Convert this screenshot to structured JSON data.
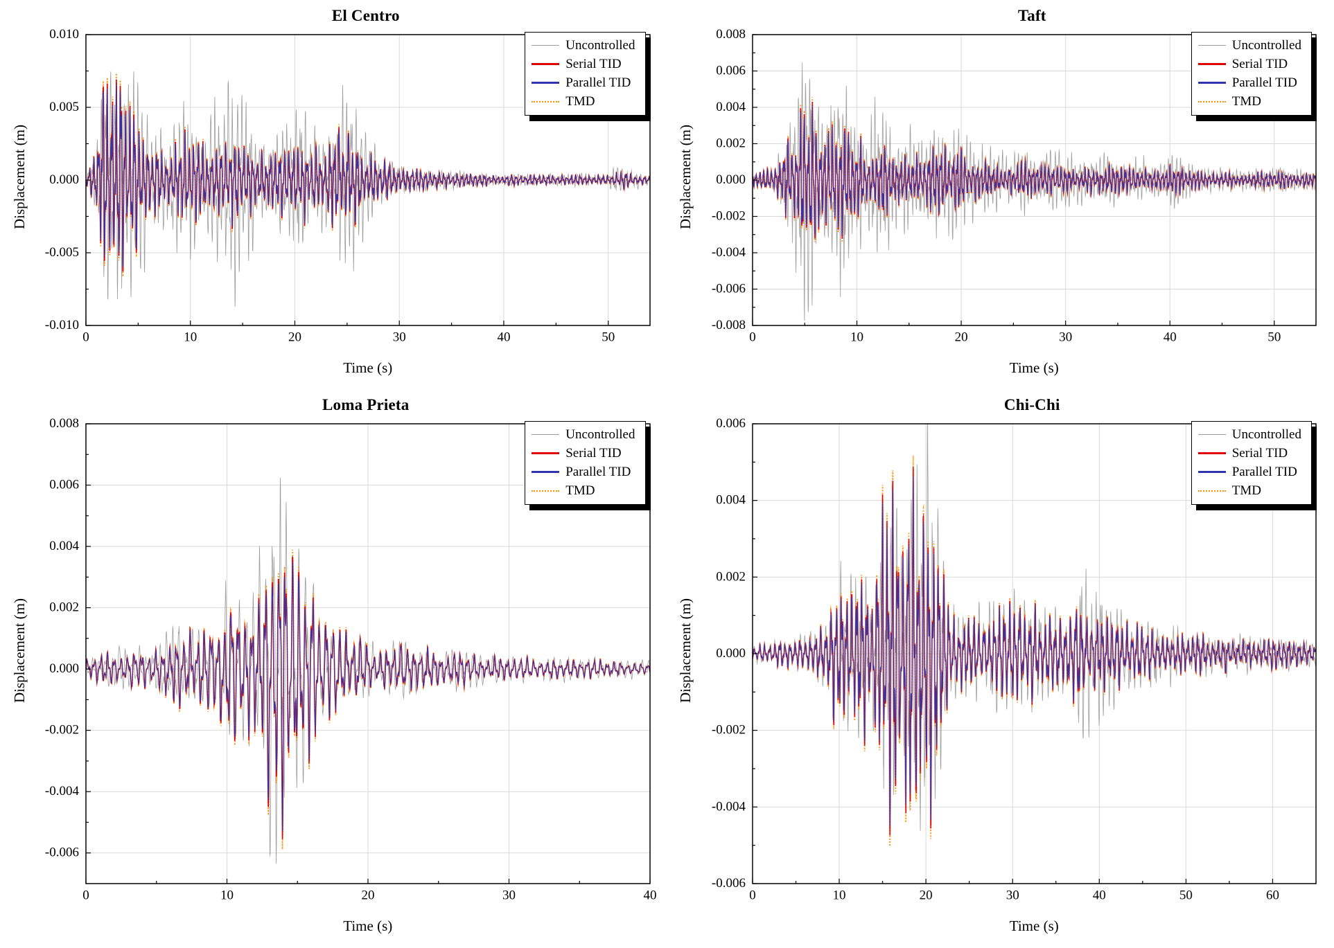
{
  "figure": {
    "background": "#ffffff"
  },
  "colors": {
    "uncontrolled": "#9c9c9c",
    "serial": "#e00000",
    "parallel": "#2f36ad",
    "tmd": "#ff8f00",
    "grid": "#d9d9d9",
    "frame": "#000000"
  },
  "chart_data": [
    {
      "type": "line",
      "title": "El Centro",
      "xlabel": "Time (s)",
      "ylabel": "Displacement (m)",
      "xlim": [
        0,
        54
      ],
      "ylim": [
        -0.01,
        0.01
      ],
      "xticks": [
        0,
        10,
        20,
        30,
        40,
        50
      ],
      "xtick_labels": [
        "0",
        "10",
        "20",
        "30",
        "40",
        "50"
      ],
      "yticks": [
        0.01,
        0.005,
        0.0,
        -0.005,
        -0.01
      ],
      "ytick_labels": [
        "0.010",
        "0.005",
        "0.000",
        "-0.005",
        "-0.010"
      ],
      "x_minor": 5,
      "y_minor": 0.0025,
      "grid": true,
      "legend_position": "top-right",
      "series": [
        {
          "name": "Uncontrolled",
          "color": "#9c9c9c",
          "style": "solid",
          "weight": 1.5,
          "role": "uncontrolled"
        },
        {
          "name": "Serial TID",
          "color": "#e00000",
          "style": "solid",
          "weight": 3,
          "role": "serial"
        },
        {
          "name": "Parallel TID",
          "color": "#2f36ad",
          "style": "solid",
          "weight": 3,
          "role": "parallel"
        },
        {
          "name": "TMD",
          "color": "#ff8f00",
          "style": "dotted",
          "weight": 2,
          "role": "tmd"
        }
      ],
      "envelope": {
        "t": [
          0,
          1,
          1.8,
          2.5,
          3.2,
          4,
          5,
          6,
          7,
          8,
          9,
          10,
          11,
          12,
          13,
          14,
          15,
          16,
          17,
          18,
          19,
          20,
          21,
          22,
          23,
          24,
          25,
          26,
          27,
          28,
          30,
          32,
          35,
          38,
          42,
          46,
          50,
          51,
          52,
          54
        ],
        "uncontrolled": [
          0.0004,
          0.002,
          0.0085,
          0.0092,
          0.0093,
          0.007,
          0.0078,
          0.0045,
          0.003,
          0.0045,
          0.0056,
          0.0052,
          0.0048,
          0.005,
          0.0058,
          0.0088,
          0.006,
          0.0045,
          0.0035,
          0.0032,
          0.0042,
          0.0048,
          0.0045,
          0.004,
          0.0035,
          0.0055,
          0.006,
          0.0055,
          0.003,
          0.002,
          0.0012,
          0.0008,
          0.0006,
          0.0005,
          0.0004,
          0.0004,
          0.0005,
          0.001,
          0.0008,
          0.0004
        ],
        "controlled": [
          0.0004,
          0.0018,
          0.0078,
          0.009,
          0.0086,
          0.005,
          0.0055,
          0.003,
          0.002,
          0.0028,
          0.0032,
          0.003,
          0.0028,
          0.0028,
          0.003,
          0.0033,
          0.0028,
          0.0022,
          0.002,
          0.002,
          0.0028,
          0.0032,
          0.003,
          0.0028,
          0.0024,
          0.0036,
          0.0038,
          0.0032,
          0.002,
          0.0014,
          0.0009,
          0.0007,
          0.0005,
          0.0004,
          0.00035,
          0.0003,
          0.0004,
          0.0006,
          0.0005,
          0.0003
        ]
      },
      "synth": {
        "seed": 3,
        "f1": 2.3,
        "f2": 5.5
      }
    },
    {
      "type": "line",
      "title": "Taft",
      "xlabel": "Time (s)",
      "ylabel": "Displacement (m)",
      "xlim": [
        0,
        54
      ],
      "ylim": [
        -0.008,
        0.008
      ],
      "xticks": [
        0,
        10,
        20,
        30,
        40,
        50
      ],
      "xtick_labels": [
        "0",
        "10",
        "20",
        "30",
        "40",
        "50"
      ],
      "yticks": [
        0.008,
        0.006,
        0.004,
        0.002,
        0.0,
        -0.002,
        -0.004,
        -0.006,
        -0.008
      ],
      "ytick_labels": [
        "0.008",
        "0.006",
        "0.004",
        "0.002",
        "0.000",
        "-0.002",
        "-0.004",
        "-0.006",
        "-0.008"
      ],
      "x_minor": 5,
      "y_minor": 0.001,
      "grid": true,
      "legend_position": "top-right",
      "series": [
        {
          "name": "Uncontrolled",
          "color": "#9c9c9c",
          "style": "solid",
          "weight": 1.5,
          "role": "uncontrolled"
        },
        {
          "name": "Serial TID",
          "color": "#e00000",
          "style": "solid",
          "weight": 3,
          "role": "serial"
        },
        {
          "name": "Parallel TID",
          "color": "#2f36ad",
          "style": "solid",
          "weight": 3,
          "role": "parallel"
        },
        {
          "name": "TMD",
          "color": "#ff8f00",
          "style": "dotted",
          "weight": 2,
          "role": "tmd"
        }
      ],
      "envelope": {
        "t": [
          0,
          2,
          3,
          4,
          5,
          6,
          7,
          8,
          9,
          10,
          11,
          12,
          13,
          14,
          15,
          16,
          17,
          18,
          19,
          20,
          21,
          22,
          24,
          26,
          28,
          30,
          32,
          34,
          36,
          38,
          40,
          42,
          44,
          46,
          48,
          50,
          52,
          54
        ],
        "uncontrolled": [
          0.0003,
          0.0008,
          0.002,
          0.0045,
          0.0076,
          0.0068,
          0.006,
          0.0066,
          0.0058,
          0.0046,
          0.004,
          0.0042,
          0.0038,
          0.003,
          0.0028,
          0.0032,
          0.0036,
          0.004,
          0.0042,
          0.004,
          0.0026,
          0.0018,
          0.0015,
          0.0022,
          0.0018,
          0.0015,
          0.0013,
          0.0015,
          0.0013,
          0.0012,
          0.0015,
          0.0013,
          0.0008,
          0.0006,
          0.0006,
          0.0008,
          0.0006,
          0.0005
        ],
        "controlled": [
          0.0003,
          0.0007,
          0.0018,
          0.003,
          0.0046,
          0.004,
          0.0033,
          0.0036,
          0.003,
          0.0025,
          0.002,
          0.0022,
          0.002,
          0.0016,
          0.0014,
          0.0015,
          0.0017,
          0.0018,
          0.0018,
          0.0016,
          0.0012,
          0.001,
          0.0008,
          0.001,
          0.0008,
          0.0007,
          0.0007,
          0.0008,
          0.0007,
          0.0006,
          0.0008,
          0.0007,
          0.0005,
          0.0004,
          0.0004,
          0.0005,
          0.0004,
          0.0004
        ]
      },
      "synth": {
        "seed": 17,
        "f1": 2.6,
        "f2": 6.0
      }
    },
    {
      "type": "line",
      "title": "Loma Prieta",
      "xlabel": "Time (s)",
      "ylabel": "Displacement (m)",
      "xlim": [
        0,
        40
      ],
      "ylim": [
        -0.007,
        0.008
      ],
      "xticks": [
        0,
        10,
        20,
        30,
        40
      ],
      "xtick_labels": [
        "0",
        "10",
        "20",
        "30",
        "40"
      ],
      "yticks": [
        0.008,
        0.006,
        0.004,
        0.002,
        0.0,
        -0.002,
        -0.004,
        -0.006
      ],
      "ytick_labels": [
        "0.008",
        "0.006",
        "0.004",
        "0.002",
        "0.000",
        "-0.002",
        "-0.004",
        "-0.006"
      ],
      "x_minor": 5,
      "y_minor": 0.001,
      "grid": true,
      "legend_position": "top-right",
      "series": [
        {
          "name": "Uncontrolled",
          "color": "#9c9c9c",
          "style": "solid",
          "weight": 1.5,
          "role": "uncontrolled"
        },
        {
          "name": "Serial TID",
          "color": "#e00000",
          "style": "solid",
          "weight": 3,
          "role": "serial"
        },
        {
          "name": "Parallel TID",
          "color": "#2f36ad",
          "style": "solid",
          "weight": 3,
          "role": "parallel"
        },
        {
          "name": "TMD",
          "color": "#ff8f00",
          "style": "dotted",
          "weight": 2,
          "role": "tmd"
        }
      ],
      "envelope": {
        "t": [
          0,
          1,
          2,
          3,
          4,
          5,
          6,
          7,
          8,
          9,
          9.5,
          10,
          10.5,
          11,
          11.5,
          12,
          12.5,
          13,
          13.5,
          14,
          14.5,
          15,
          15.5,
          16,
          17,
          18,
          19,
          20,
          21,
          22,
          23,
          24,
          25,
          26,
          27,
          28,
          30,
          32,
          34,
          36,
          38,
          40
        ],
        "uncontrolled": [
          0.0003,
          0.0005,
          0.0006,
          0.0008,
          0.0007,
          0.0009,
          0.0012,
          0.0015,
          0.0012,
          0.0016,
          0.002,
          0.0028,
          0.003,
          0.0032,
          0.0028,
          0.0035,
          0.0048,
          0.0058,
          0.0074,
          0.006,
          0.0046,
          0.004,
          0.0042,
          0.0035,
          0.0025,
          0.0018,
          0.0012,
          0.001,
          0.0008,
          0.0009,
          0.001,
          0.0008,
          0.0006,
          0.0008,
          0.0006,
          0.0005,
          0.0005,
          0.0004,
          0.0004,
          0.00035,
          0.0003,
          0.0003
        ],
        "controlled": [
          0.0003,
          0.0005,
          0.0006,
          0.0007,
          0.0006,
          0.0008,
          0.0011,
          0.0013,
          0.0011,
          0.0014,
          0.0018,
          0.0024,
          0.0026,
          0.0028,
          0.0024,
          0.003,
          0.004,
          0.0047,
          0.006,
          0.0048,
          0.0038,
          0.0033,
          0.0034,
          0.0028,
          0.002,
          0.0014,
          0.001,
          0.0008,
          0.0007,
          0.0008,
          0.0008,
          0.0007,
          0.0005,
          0.0006,
          0.0005,
          0.0004,
          0.0004,
          0.00035,
          0.0003,
          0.0003,
          0.00025,
          0.00025
        ]
      },
      "synth": {
        "seed": 29,
        "f1": 2.1,
        "f2": 4.8
      }
    },
    {
      "type": "line",
      "title": "Chi-Chi",
      "xlabel": "Time (s)",
      "ylabel": "Displacement (m)",
      "xlim": [
        0,
        65
      ],
      "ylim": [
        -0.006,
        0.006
      ],
      "xticks": [
        0,
        10,
        20,
        30,
        40,
        50,
        60
      ],
      "xtick_labels": [
        "0",
        "10",
        "20",
        "30",
        "40",
        "50",
        "60"
      ],
      "yticks": [
        0.006,
        0.004,
        0.002,
        0.0,
        -0.002,
        -0.004,
        -0.006
      ],
      "ytick_labels": [
        "0.006",
        "0.004",
        "0.002",
        "0.000",
        "-0.002",
        "-0.004",
        "-0.006"
      ],
      "x_minor": 5,
      "y_minor": 0.001,
      "grid": true,
      "legend_position": "top-right",
      "series": [
        {
          "name": "Uncontrolled",
          "color": "#9c9c9c",
          "style": "solid",
          "weight": 1.5,
          "role": "uncontrolled"
        },
        {
          "name": "Serial TID",
          "color": "#e00000",
          "style": "solid",
          "weight": 3,
          "role": "serial"
        },
        {
          "name": "Parallel TID",
          "color": "#2f36ad",
          "style": "solid",
          "weight": 3,
          "role": "parallel"
        },
        {
          "name": "TMD",
          "color": "#ff8f00",
          "style": "dotted",
          "weight": 2,
          "role": "tmd"
        }
      ],
      "envelope": {
        "t": [
          0,
          2,
          4,
          6,
          8,
          9,
          10,
          11,
          12,
          13,
          14,
          15,
          16,
          17,
          18,
          19,
          20,
          21,
          22,
          23,
          24,
          25,
          26,
          27,
          28,
          29,
          30,
          31,
          32,
          33,
          34,
          35,
          36,
          37,
          38,
          39,
          40,
          42,
          44,
          46,
          48,
          50,
          52,
          54,
          56,
          58,
          60,
          62,
          65
        ],
        "uncontrolled": [
          0.0002,
          0.0003,
          0.0004,
          0.0005,
          0.0008,
          0.0012,
          0.0026,
          0.0022,
          0.002,
          0.0025,
          0.002,
          0.0042,
          0.0046,
          0.004,
          0.005,
          0.0045,
          0.0057,
          0.004,
          0.0025,
          0.0015,
          0.0012,
          0.001,
          0.0012,
          0.0013,
          0.0015,
          0.0014,
          0.0015,
          0.0016,
          0.0015,
          0.0014,
          0.0012,
          0.0011,
          0.0012,
          0.0015,
          0.0028,
          0.002,
          0.0018,
          0.0012,
          0.001,
          0.0009,
          0.0008,
          0.0007,
          0.0006,
          0.0006,
          0.0005,
          0.0005,
          0.0005,
          0.0004,
          0.0004
        ],
        "controlled": [
          0.0002,
          0.0003,
          0.0004,
          0.0005,
          0.0007,
          0.0011,
          0.0028,
          0.002,
          0.0018,
          0.0022,
          0.0018,
          0.0042,
          0.0042,
          0.0036,
          0.0046,
          0.0041,
          0.0052,
          0.0036,
          0.002,
          0.0013,
          0.001,
          0.0009,
          0.001,
          0.0011,
          0.0013,
          0.0012,
          0.0013,
          0.0014,
          0.0013,
          0.0012,
          0.001,
          0.0009,
          0.001,
          0.0012,
          0.0015,
          0.0012,
          0.001,
          0.0009,
          0.0008,
          0.0007,
          0.0006,
          0.0006,
          0.0005,
          0.0005,
          0.0004,
          0.0004,
          0.0004,
          0.00035,
          0.0003
        ]
      },
      "synth": {
        "seed": 41,
        "f1": 1.7,
        "f2": 4.2
      }
    }
  ]
}
